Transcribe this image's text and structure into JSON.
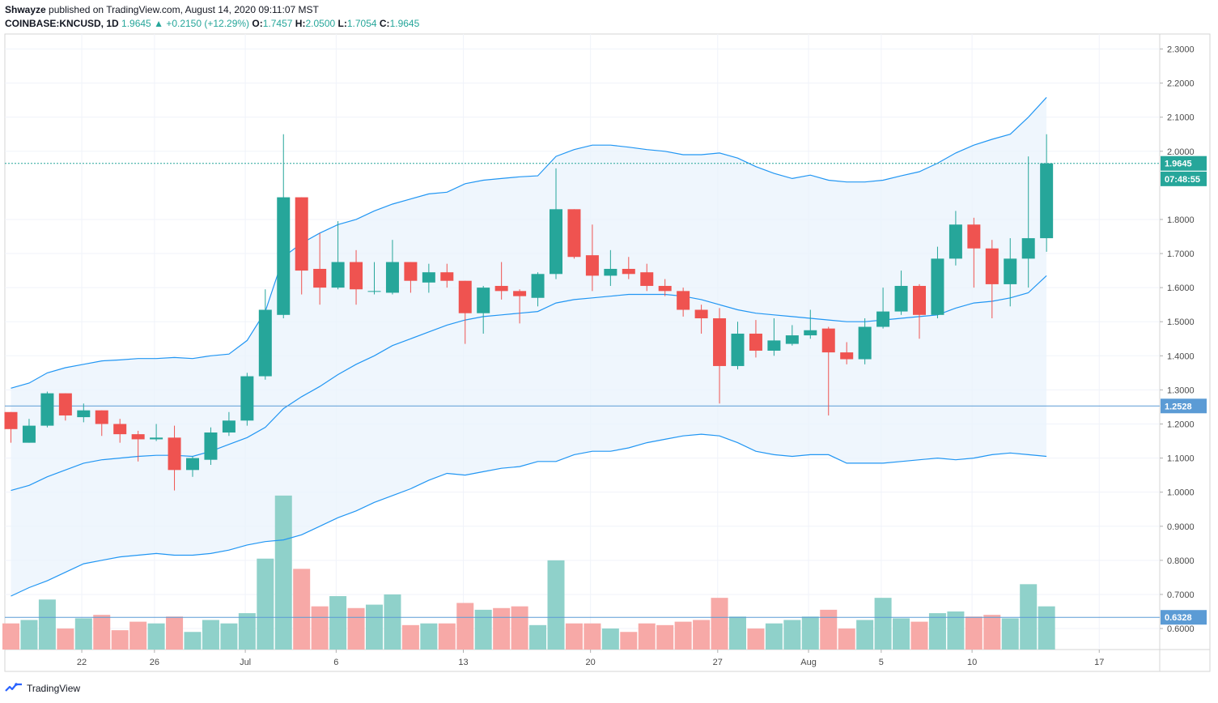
{
  "header": {
    "author": "Shwayze",
    "published_text": "published on TradingView.com, August 14, 2020 09:11:07 MST",
    "symbol": "COINBASE:KNCUSD, 1D",
    "last": "1.9645",
    "arrow": "▲",
    "change": "+0.2150 (+12.29%)",
    "o_label": "O:",
    "o_value": "1.7457",
    "h_label": "H:",
    "h_value": "2.0500",
    "l_label": "L:",
    "l_value": "1.7054",
    "c_label": "C:",
    "c_value": "1.9645"
  },
  "footer": {
    "brand": "TradingView"
  },
  "colors": {
    "up": "#26a69a",
    "down": "#ef5350",
    "vol_up": "#8fd1ca",
    "vol_down": "#f7a9a7",
    "band_line": "#2196f3",
    "band_fill": "#e9f3fc",
    "hline": "#5b9bd5",
    "grid": "#f0f3fa",
    "axis_text": "#4a4a4a"
  },
  "chart_data": {
    "type": "candlestick",
    "symbol": "COINBASE:KNCUSD",
    "interval": "1D",
    "y_range": [
      0.55,
      2.35
    ],
    "y_ticks": [
      "2.3000",
      "2.2000",
      "2.1000",
      "2.0000",
      "1.8000",
      "1.7000",
      "1.6000",
      "1.5000",
      "1.4000",
      "1.3000",
      "1.2000",
      "1.1000",
      "1.0000",
      "0.9000",
      "0.8000",
      "0.7000",
      "0.6000"
    ],
    "x_ticks": [
      {
        "label": "22",
        "day": 3.9
      },
      {
        "label": "26",
        "day": 7.9
      },
      {
        "label": "Jul",
        "day": 12.9
      },
      {
        "label": "6",
        "day": 17.9
      },
      {
        "label": "13",
        "day": 24.9
      },
      {
        "label": "20",
        "day": 31.9
      },
      {
        "label": "27",
        "day": 38.9
      },
      {
        "label": "Aug",
        "day": 43.9
      },
      {
        "label": "5",
        "day": 47.9
      },
      {
        "label": "10",
        "day": 52.9
      },
      {
        "label": "17",
        "day": 59.9
      }
    ],
    "candles": [
      {
        "o": 1.235,
        "h": 1.235,
        "l": 1.145,
        "c": 1.185,
        "v": 0.615
      },
      {
        "o": 1.145,
        "h": 1.215,
        "l": 1.145,
        "c": 1.195,
        "v": 0.625
      },
      {
        "o": 1.195,
        "h": 1.295,
        "l": 1.19,
        "c": 1.29,
        "v": 0.685
      },
      {
        "o": 1.29,
        "h": 1.29,
        "l": 1.21,
        "c": 1.225,
        "v": 0.6
      },
      {
        "o": 1.22,
        "h": 1.26,
        "l": 1.205,
        "c": 1.24,
        "v": 0.63
      },
      {
        "o": 1.24,
        "h": 1.24,
        "l": 1.165,
        "c": 1.2,
        "v": 0.64
      },
      {
        "o": 1.2,
        "h": 1.215,
        "l": 1.145,
        "c": 1.17,
        "v": 0.595
      },
      {
        "o": 1.17,
        "h": 1.18,
        "l": 1.09,
        "c": 1.155,
        "v": 0.62
      },
      {
        "o": 1.155,
        "h": 1.2,
        "l": 1.15,
        "c": 1.16,
        "v": 0.615
      },
      {
        "o": 1.16,
        "h": 1.195,
        "l": 1.005,
        "c": 1.065,
        "v": 0.635
      },
      {
        "o": 1.065,
        "h": 1.105,
        "l": 1.045,
        "c": 1.1,
        "v": 0.59
      },
      {
        "o": 1.095,
        "h": 1.19,
        "l": 1.08,
        "c": 1.175,
        "v": 0.625
      },
      {
        "o": 1.175,
        "h": 1.235,
        "l": 1.165,
        "c": 1.21,
        "v": 0.615
      },
      {
        "o": 1.21,
        "h": 1.35,
        "l": 1.195,
        "c": 1.34,
        "v": 0.645
      },
      {
        "o": 1.34,
        "h": 1.595,
        "l": 1.33,
        "c": 1.535,
        "v": 0.805
      },
      {
        "o": 1.52,
        "h": 2.05,
        "l": 1.51,
        "c": 1.865,
        "v": 0.99
      },
      {
        "o": 1.865,
        "h": 1.865,
        "l": 1.58,
        "c": 1.65,
        "v": 0.775
      },
      {
        "o": 1.655,
        "h": 1.76,
        "l": 1.55,
        "c": 1.6,
        "v": 0.665
      },
      {
        "o": 1.6,
        "h": 1.795,
        "l": 1.595,
        "c": 1.675,
        "v": 0.695
      },
      {
        "o": 1.675,
        "h": 1.71,
        "l": 1.55,
        "c": 1.595,
        "v": 0.66
      },
      {
        "o": 1.59,
        "h": 1.675,
        "l": 1.58,
        "c": 1.59,
        "v": 0.67
      },
      {
        "o": 1.585,
        "h": 1.74,
        "l": 1.58,
        "c": 1.675,
        "v": 0.7
      },
      {
        "o": 1.675,
        "h": 1.675,
        "l": 1.585,
        "c": 1.62,
        "v": 0.61
      },
      {
        "o": 1.615,
        "h": 1.67,
        "l": 1.585,
        "c": 1.645,
        "v": 0.615
      },
      {
        "o": 1.645,
        "h": 1.67,
        "l": 1.6,
        "c": 1.62,
        "v": 0.615
      },
      {
        "o": 1.62,
        "h": 1.62,
        "l": 1.435,
        "c": 1.525,
        "v": 0.675
      },
      {
        "o": 1.525,
        "h": 1.605,
        "l": 1.465,
        "c": 1.6,
        "v": 0.655
      },
      {
        "o": 1.605,
        "h": 1.675,
        "l": 1.565,
        "c": 1.59,
        "v": 0.66
      },
      {
        "o": 1.59,
        "h": 1.595,
        "l": 1.495,
        "c": 1.575,
        "v": 0.665
      },
      {
        "o": 1.57,
        "h": 1.645,
        "l": 1.545,
        "c": 1.64,
        "v": 0.61
      },
      {
        "o": 1.64,
        "h": 1.95,
        "l": 1.625,
        "c": 1.83,
        "v": 0.8
      },
      {
        "o": 1.83,
        "h": 1.83,
        "l": 1.685,
        "c": 1.69,
        "v": 0.615
      },
      {
        "o": 1.695,
        "h": 1.785,
        "l": 1.59,
        "c": 1.635,
        "v": 0.615
      },
      {
        "o": 1.635,
        "h": 1.71,
        "l": 1.605,
        "c": 1.655,
        "v": 0.6
      },
      {
        "o": 1.655,
        "h": 1.69,
        "l": 1.625,
        "c": 1.64,
        "v": 0.59
      },
      {
        "o": 1.645,
        "h": 1.67,
        "l": 1.59,
        "c": 1.605,
        "v": 0.615
      },
      {
        "o": 1.605,
        "h": 1.625,
        "l": 1.575,
        "c": 1.59,
        "v": 0.61
      },
      {
        "o": 1.59,
        "h": 1.6,
        "l": 1.515,
        "c": 1.535,
        "v": 0.62
      },
      {
        "o": 1.535,
        "h": 1.55,
        "l": 1.465,
        "c": 1.51,
        "v": 0.625
      },
      {
        "o": 1.51,
        "h": 1.54,
        "l": 1.26,
        "c": 1.37,
        "v": 0.69
      },
      {
        "o": 1.37,
        "h": 1.5,
        "l": 1.36,
        "c": 1.465,
        "v": 0.635
      },
      {
        "o": 1.465,
        "h": 1.505,
        "l": 1.395,
        "c": 1.415,
        "v": 0.6
      },
      {
        "o": 1.415,
        "h": 1.51,
        "l": 1.4,
        "c": 1.445,
        "v": 0.615
      },
      {
        "o": 1.435,
        "h": 1.49,
        "l": 1.43,
        "c": 1.46,
        "v": 0.625
      },
      {
        "o": 1.46,
        "h": 1.535,
        "l": 1.45,
        "c": 1.475,
        "v": 0.635
      },
      {
        "o": 1.48,
        "h": 1.485,
        "l": 1.225,
        "c": 1.41,
        "v": 0.655
      },
      {
        "o": 1.41,
        "h": 1.44,
        "l": 1.375,
        "c": 1.39,
        "v": 0.6
      },
      {
        "o": 1.39,
        "h": 1.51,
        "l": 1.375,
        "c": 1.485,
        "v": 0.625
      },
      {
        "o": 1.485,
        "h": 1.6,
        "l": 1.48,
        "c": 1.53,
        "v": 0.69
      },
      {
        "o": 1.53,
        "h": 1.65,
        "l": 1.52,
        "c": 1.605,
        "v": 0.63
      },
      {
        "o": 1.605,
        "h": 1.61,
        "l": 1.45,
        "c": 1.52,
        "v": 0.62
      },
      {
        "o": 1.52,
        "h": 1.72,
        "l": 1.51,
        "c": 1.685,
        "v": 0.645
      },
      {
        "o": 1.685,
        "h": 1.825,
        "l": 1.665,
        "c": 1.785,
        "v": 0.65
      },
      {
        "o": 1.785,
        "h": 1.805,
        "l": 1.6,
        "c": 1.715,
        "v": 0.635
      },
      {
        "o": 1.715,
        "h": 1.74,
        "l": 1.51,
        "c": 1.61,
        "v": 0.64
      },
      {
        "o": 1.61,
        "h": 1.745,
        "l": 1.545,
        "c": 1.685,
        "v": 0.63
      },
      {
        "o": 1.685,
        "h": 1.985,
        "l": 1.6,
        "c": 1.745,
        "v": 0.73
      },
      {
        "o": 1.745,
        "h": 2.05,
        "l": 1.705,
        "c": 1.9645,
        "v": 0.665
      }
    ],
    "bollinger_upper": [
      1.305,
      1.32,
      1.35,
      1.365,
      1.375,
      1.385,
      1.388,
      1.392,
      1.392,
      1.395,
      1.392,
      1.4,
      1.405,
      1.445,
      1.53,
      1.69,
      1.73,
      1.76,
      1.785,
      1.8,
      1.825,
      1.845,
      1.86,
      1.875,
      1.88,
      1.905,
      1.915,
      1.92,
      1.925,
      1.928,
      1.985,
      2.005,
      2.018,
      2.018,
      2.012,
      2.005,
      2,
      1.99,
      1.99,
      1.995,
      1.98,
      1.955,
      1.935,
      1.92,
      1.93,
      1.915,
      1.91,
      1.91,
      1.915,
      1.928,
      1.94,
      1.965,
      1.995,
      2.018,
      2.035,
      2.05,
      2.1,
      2.158
    ],
    "bollinger_middle": [
      1.005,
      1.02,
      1.045,
      1.065,
      1.085,
      1.095,
      1.1,
      1.105,
      1.108,
      1.108,
      1.105,
      1.12,
      1.14,
      1.16,
      1.19,
      1.245,
      1.28,
      1.31,
      1.345,
      1.375,
      1.4,
      1.43,
      1.45,
      1.47,
      1.49,
      1.505,
      1.515,
      1.52,
      1.525,
      1.53,
      1.555,
      1.565,
      1.57,
      1.575,
      1.58,
      1.58,
      1.58,
      1.575,
      1.565,
      1.55,
      1.535,
      1.525,
      1.52,
      1.515,
      1.51,
      1.505,
      1.5,
      1.5,
      1.505,
      1.51,
      1.515,
      1.52,
      1.54,
      1.555,
      1.56,
      1.57,
      1.585,
      1.635
    ],
    "bollinger_lower": [
      0.695,
      0.72,
      0.74,
      0.765,
      0.79,
      0.8,
      0.81,
      0.815,
      0.82,
      0.815,
      0.815,
      0.82,
      0.83,
      0.845,
      0.855,
      0.86,
      0.875,
      0.9,
      0.925,
      0.945,
      0.97,
      0.99,
      1.01,
      1.035,
      1.055,
      1.05,
      1.06,
      1.07,
      1.075,
      1.09,
      1.09,
      1.11,
      1.12,
      1.12,
      1.13,
      1.145,
      1.155,
      1.165,
      1.17,
      1.165,
      1.145,
      1.12,
      1.11,
      1.105,
      1.11,
      1.11,
      1.085,
      1.085,
      1.085,
      1.09,
      1.095,
      1.1,
      1.095,
      1.1,
      1.11,
      1.115,
      1.11,
      1.105
    ],
    "price_labels": [
      {
        "text": "1.9645",
        "value": 1.9645,
        "style": "up"
      },
      {
        "text": "07:48:55",
        "value": 1.919,
        "style": "up"
      },
      {
        "text": "1.2528",
        "value": 1.2528,
        "style": "line"
      },
      {
        "text": "0.6328",
        "value": 0.6328,
        "style": "line"
      }
    ],
    "horizontal_lines": [
      1.2528,
      0.6328
    ],
    "last_price_line": 1.9645
  }
}
